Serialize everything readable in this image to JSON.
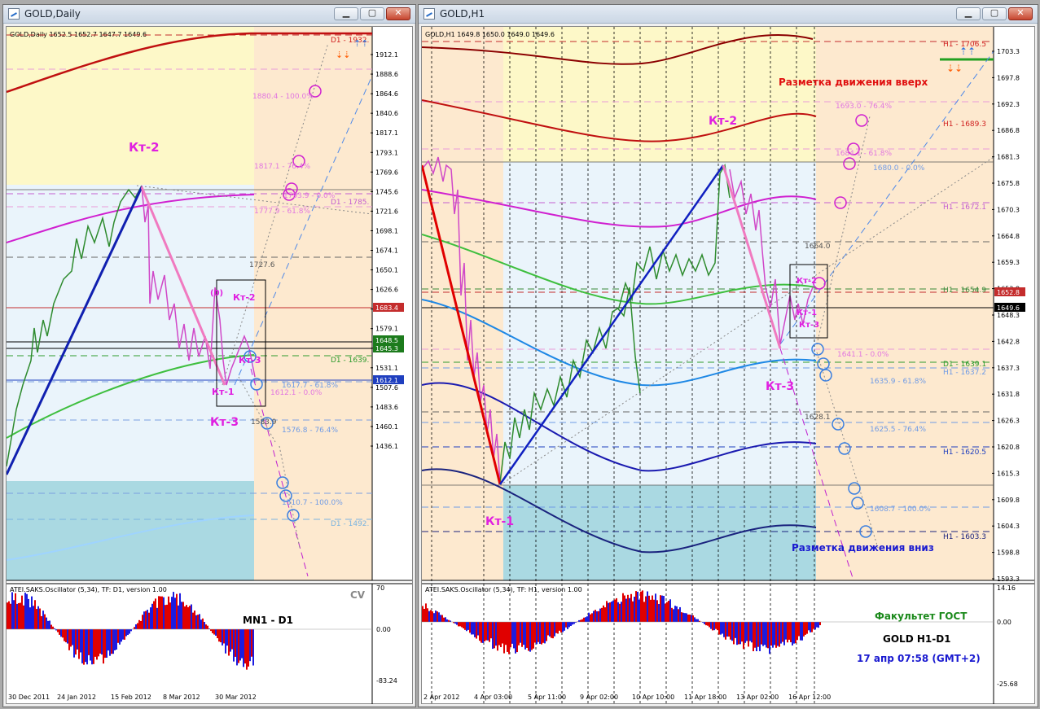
{
  "windows": [
    {
      "title": "GOLD,Daily",
      "ohlc": "GOLD,Daily  1652.5 1652.7 1647.7 1649.6",
      "price_labels": [
        "1912.1",
        "1888.6",
        "1864.6",
        "1840.6",
        "1817.1",
        "1793.1",
        "1769.6",
        "1745.6",
        "1721.6",
        "1698.1",
        "1674.1",
        "1650.1",
        "1626.6",
        "1602.6",
        "1579.1",
        "1555.1",
        "1531.1",
        "1507.6",
        "1483.6",
        "1460.1",
        "1436.1"
      ],
      "tags": {
        "red1": "1683.4",
        "black1": "1645.3",
        "blue1": "1612.1",
        "green1": "1648.5"
      },
      "level_texts": {
        "d1_top": "D1 - 1932.",
        "fib1": "1880.4 - 100.0%",
        "fib2": "1817.1 - 76.4%",
        "fib3": "1793.9 - 0.0%",
        "fib4": "1777.9 - 61.8%",
        "d1_mag": "D1 - 1785.",
        "lvl1727": "1727.6",
        "d1_green": "D1 - 1639.",
        "fib5": "1617.7 - 61.8%",
        "fib6": "1612.1 - 0.0%",
        "lvl1583": "1583.9",
        "fib7": "1576.8 - 76.4%",
        "fib8": "1510.7 - 100.0%",
        "d1_low": "D1 - 1492."
      },
      "kt": {
        "kt2_big": "Кт-2",
        "kt2": "Кт-2",
        "kt3": "Кт-3",
        "kt1": "Кт-1",
        "kt3_low": "Кт-3",
        "zero": "(0)"
      },
      "osc": {
        "title": "ATEI.SAKS.Oscillator (5,34), TF: D1, version 1.00",
        "max": "70",
        "zero": "0.00",
        "min": "-83.24",
        "cv": "CV",
        "label": "MN1 - D1"
      },
      "dates": [
        "30 Dec 2011",
        "24 Jan 2012",
        "15 Feb 2012",
        "8 Mar 2012",
        "30 Mar 2012"
      ]
    },
    {
      "title": "GOLD,H1",
      "ohlc": "GOLD,H1  1649.8 1650.0 1649.0 1649.6",
      "price_labels": [
        "1703.3",
        "1697.8",
        "1692.3",
        "1686.8",
        "1681.3",
        "1675.8",
        "1670.3",
        "1664.8",
        "1659.3",
        "1653.8",
        "1648.3",
        "1642.8",
        "1637.3",
        "1631.8",
        "1626.3",
        "1620.8",
        "1615.3",
        "1609.8",
        "1604.3",
        "1598.8",
        "1593.3"
      ],
      "tags": {
        "red1": "1652.8",
        "black1": "1649.6"
      },
      "level_texts": {
        "h1_top": "H1 - 1706.5",
        "fib1": "1693.0 - 76.4%",
        "h1_1689": "H1 - 1689.3",
        "fib2": "1684.1 - 61.8%",
        "fib3": "1680.0 - 0.0%",
        "h1_1672": "H1 - 1672.1",
        "lvl1664": "1664.0",
        "h1_1654": "H1 - 1654.9",
        "fib4": "1641.1 - 0.0%",
        "d1_1639": "D1 - 1639.1",
        "h1_1637": "H1 - 1637.2",
        "fib5": "1635.9 - 61.8%",
        "lvl1628": "1628.1",
        "fib6": "1625.5 - 76.4%",
        "h1_1620": "H1 - 1620.5",
        "fib7": "1608.7 - 100.0%",
        "h1_1603": "H1 - 1603.3"
      },
      "annotations": {
        "up": "Разметка движения вверх",
        "down": "Разметка движения вниз"
      },
      "kt": {
        "kt2_big": "Кт-2",
        "kt1_big": "Кт-1",
        "kt3_big": "Кт-3",
        "kt2": "Кт-2",
        "kt1": "Кт-1",
        "kt3": "Кт-3"
      },
      "osc": {
        "title": "ATEI.SAKS.Oscillator (5,34), TF: H1, version 1.00",
        "max": "14.16",
        "zero": "0.00",
        "min": "-25.68",
        "faculty": "Факультет ГОСТ",
        "pair": "GOLD   H1-D1",
        "time": "17 апр 07:58  (GMT+2)"
      },
      "dates": [
        "2 Apr 2012",
        "4 Apr 03:00",
        "5 Apr 11:00",
        "9 Apr 02:00",
        "10 Apr 10:00",
        "11 Apr 18:00",
        "13 Apr 02:00",
        "16 Apr 12:00"
      ]
    }
  ],
  "colors": {
    "bg_peach": "#fde9cf",
    "bg_yellow": "#fdf8c8",
    "bg_blue": "#eaf4fb",
    "bg_teal": "#aad9e2",
    "bull": "#2e8b2e",
    "bear": "#d048c8",
    "fib_pink": "#e277e0",
    "fib_blue": "#6f9be6"
  }
}
